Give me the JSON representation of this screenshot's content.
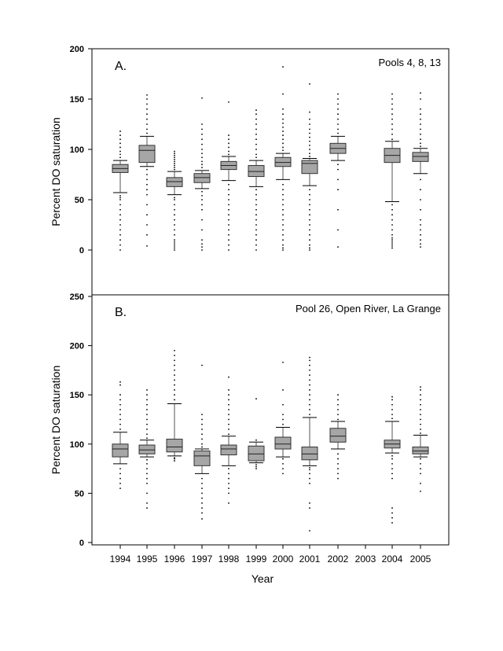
{
  "chart_data": [
    {
      "type": "box",
      "panel_label": "A.",
      "annotation": "Pools 4, 8, 13",
      "ylabel": "Percent DO saturation",
      "xlabel": "",
      "ylim": [
        0,
        200
      ],
      "yticks": [
        0,
        50,
        100,
        150,
        200
      ],
      "categories": [
        "1994",
        "1995",
        "1996",
        "1997",
        "1998",
        "1999",
        "2000",
        "2001",
        "2002",
        "2003",
        "2004",
        "2005"
      ],
      "boxes": [
        {
          "year": "1994",
          "whisker_low": 57,
          "q1": 77,
          "median": 81,
          "q3": 85,
          "whisker_high": 89,
          "outliers": [
            0,
            5,
            10,
            15,
            20,
            25,
            30,
            35,
            40,
            45,
            50,
            52,
            54,
            92,
            95,
            98,
            102,
            106,
            110,
            114,
            118
          ]
        },
        {
          "year": "1995",
          "whisker_low": 83,
          "q1": 87,
          "median": 99,
          "q3": 104,
          "whisker_high": 113,
          "outliers": [
            4,
            15,
            25,
            35,
            45,
            55,
            60,
            65,
            70,
            75,
            80,
            116,
            120,
            125,
            130,
            135,
            140,
            145,
            150,
            154
          ]
        },
        {
          "year": "1996",
          "whisker_low": 55,
          "q1": 63,
          "median": 68,
          "q3": 72,
          "whisker_high": 78,
          "outliers": [
            0,
            2,
            4,
            6,
            8,
            10,
            15,
            20,
            25,
            30,
            35,
            40,
            45,
            50,
            52,
            80,
            82,
            84,
            86,
            88,
            90,
            92,
            94,
            96,
            98
          ]
        },
        {
          "year": "1997",
          "whisker_low": 61,
          "q1": 67,
          "median": 72,
          "q3": 76,
          "whisker_high": 79,
          "outliers": [
            0,
            3,
            6,
            10,
            20,
            30,
            40,
            45,
            50,
            54,
            58,
            82,
            85,
            88,
            92,
            96,
            100,
            105,
            110,
            115,
            120,
            125,
            151
          ]
        },
        {
          "year": "1998",
          "whisker_low": 69,
          "q1": 80,
          "median": 84,
          "q3": 88,
          "whisker_high": 93,
          "outliers": [
            0,
            5,
            10,
            15,
            20,
            25,
            30,
            35,
            40,
            45,
            50,
            55,
            60,
            65,
            95,
            98,
            102,
            106,
            110,
            114,
            147
          ]
        },
        {
          "year": "1999",
          "whisker_low": 63,
          "q1": 73,
          "median": 78,
          "q3": 84,
          "whisker_high": 89,
          "outliers": [
            0,
            5,
            10,
            15,
            20,
            25,
            30,
            35,
            40,
            45,
            50,
            55,
            60,
            92,
            95,
            100,
            105,
            110,
            115,
            120,
            125,
            130,
            135,
            139
          ]
        },
        {
          "year": "2000",
          "whisker_low": 70,
          "q1": 83,
          "median": 87,
          "q3": 92,
          "whisker_high": 96,
          "outliers": [
            0,
            2,
            5,
            10,
            15,
            20,
            25,
            30,
            35,
            40,
            45,
            50,
            55,
            60,
            65,
            99,
            102,
            106,
            110,
            114,
            118,
            122,
            126,
            130,
            135,
            140,
            155,
            182
          ]
        },
        {
          "year": "2001",
          "whisker_low": 64,
          "q1": 76,
          "median": 86,
          "q3": 89,
          "whisker_high": 91,
          "outliers": [
            0,
            2,
            5,
            10,
            15,
            20,
            25,
            30,
            35,
            40,
            45,
            50,
            55,
            60,
            93,
            96,
            100,
            104,
            108,
            112,
            116,
            120,
            125,
            130,
            137,
            165
          ]
        },
        {
          "year": "2002",
          "whisker_low": 89,
          "q1": 96,
          "median": 101,
          "q3": 106,
          "whisker_high": 113,
          "outliers": [
            3,
            20,
            40,
            60,
            70,
            80,
            85,
            116,
            120,
            125,
            130,
            135,
            140,
            145,
            150,
            155
          ]
        },
        {
          "year": "2003",
          "empty": true
        },
        {
          "year": "2004",
          "whisker_low": 48,
          "q1": 87,
          "median": 94,
          "q3": 101,
          "whisker_high": 108,
          "outliers": [
            2,
            4,
            6,
            8,
            10,
            12,
            15,
            20,
            25,
            30,
            35,
            40,
            45,
            110,
            115,
            120,
            125,
            130,
            135,
            140,
            145,
            150,
            155
          ]
        },
        {
          "year": "2005",
          "whisker_low": 76,
          "q1": 88,
          "median": 93,
          "q3": 97,
          "whisker_high": 101,
          "outliers": [
            3,
            6,
            10,
            15,
            20,
            25,
            30,
            40,
            50,
            60,
            70,
            103,
            106,
            110,
            115,
            120,
            125,
            130,
            135,
            140,
            150,
            156
          ]
        }
      ]
    },
    {
      "type": "box",
      "panel_label": "B.",
      "annotation": "Pool 26, Open River, La Grange",
      "ylabel": "Percent DO saturation",
      "xlabel": "Year",
      "ylim": [
        0,
        250
      ],
      "yticks": [
        0,
        50,
        100,
        150,
        200,
        250
      ],
      "categories": [
        "1994",
        "1995",
        "1996",
        "1997",
        "1998",
        "1999",
        "2000",
        "2001",
        "2002",
        "2003",
        "2004",
        "2005"
      ],
      "boxes": [
        {
          "year": "1994",
          "whisker_low": 80,
          "q1": 87,
          "median": 95,
          "q3": 100,
          "whisker_high": 112,
          "outliers": [
            55,
            60,
            65,
            70,
            75,
            115,
            120,
            125,
            130,
            135,
            140,
            145,
            150,
            160,
            163
          ]
        },
        {
          "year": "1995",
          "whisker_low": 87,
          "q1": 90,
          "median": 94,
          "q3": 99,
          "whisker_high": 104,
          "outliers": [
            35,
            40,
            50,
            60,
            65,
            70,
            75,
            80,
            84,
            106,
            110,
            115,
            120,
            125,
            130,
            135,
            140,
            145,
            150,
            155
          ]
        },
        {
          "year": "1996",
          "whisker_low": 88,
          "q1": 92,
          "median": 97,
          "q3": 105,
          "whisker_high": 141,
          "outliers": [
            83,
            85,
            86,
            145,
            150,
            155,
            160,
            165,
            170,
            175,
            180,
            185,
            190,
            195
          ]
        },
        {
          "year": "1997",
          "whisker_low": 70,
          "q1": 78,
          "median": 88,
          "q3": 93,
          "whisker_high": 95,
          "outliers": [
            24,
            30,
            35,
            40,
            45,
            50,
            55,
            60,
            65,
            97,
            100,
            105,
            110,
            115,
            120,
            125,
            130,
            180
          ]
        },
        {
          "year": "1998",
          "whisker_low": 78,
          "q1": 89,
          "median": 95,
          "q3": 99,
          "whisker_high": 108,
          "outliers": [
            40,
            50,
            55,
            60,
            65,
            70,
            75,
            110,
            115,
            120,
            125,
            130,
            135,
            140,
            145,
            150,
            155,
            168
          ]
        },
        {
          "year": "1999",
          "whisker_low": 81,
          "q1": 83,
          "median": 90,
          "q3": 98,
          "whisker_high": 102,
          "outliers": [
            75,
            77,
            79,
            104,
            146
          ]
        },
        {
          "year": "2000",
          "whisker_low": 87,
          "q1": 95,
          "median": 100,
          "q3": 107,
          "whisker_high": 117,
          "outliers": [
            70,
            75,
            80,
            85,
            120,
            125,
            130,
            140,
            155,
            183
          ]
        },
        {
          "year": "2001",
          "whisker_low": 78,
          "q1": 84,
          "median": 90,
          "q3": 97,
          "whisker_high": 127,
          "outliers": [
            12,
            35,
            40,
            60,
            65,
            70,
            74,
            76,
            130,
            135,
            140,
            145,
            150,
            155,
            160,
            165,
            170,
            175,
            180,
            185,
            188
          ]
        },
        {
          "year": "2002",
          "whisker_low": 95,
          "q1": 102,
          "median": 108,
          "q3": 116,
          "whisker_high": 123,
          "outliers": [
            65,
            70,
            75,
            80,
            85,
            90,
            125,
            130,
            135,
            140,
            145,
            150
          ]
        },
        {
          "year": "2003",
          "empty": true
        },
        {
          "year": "2004",
          "whisker_low": 91,
          "q1": 96,
          "median": 100,
          "q3": 104,
          "whisker_high": 123,
          "outliers": [
            20,
            25,
            30,
            35,
            65,
            70,
            75,
            80,
            85,
            88,
            126,
            130,
            135,
            140,
            145,
            148
          ]
        },
        {
          "year": "2005",
          "whisker_low": 87,
          "q1": 90,
          "median": 93,
          "q3": 97,
          "whisker_high": 109,
          "outliers": [
            52,
            60,
            70,
            75,
            80,
            85,
            111,
            115,
            120,
            125,
            130,
            135,
            140,
            145,
            150,
            155,
            158
          ]
        }
      ]
    }
  ]
}
